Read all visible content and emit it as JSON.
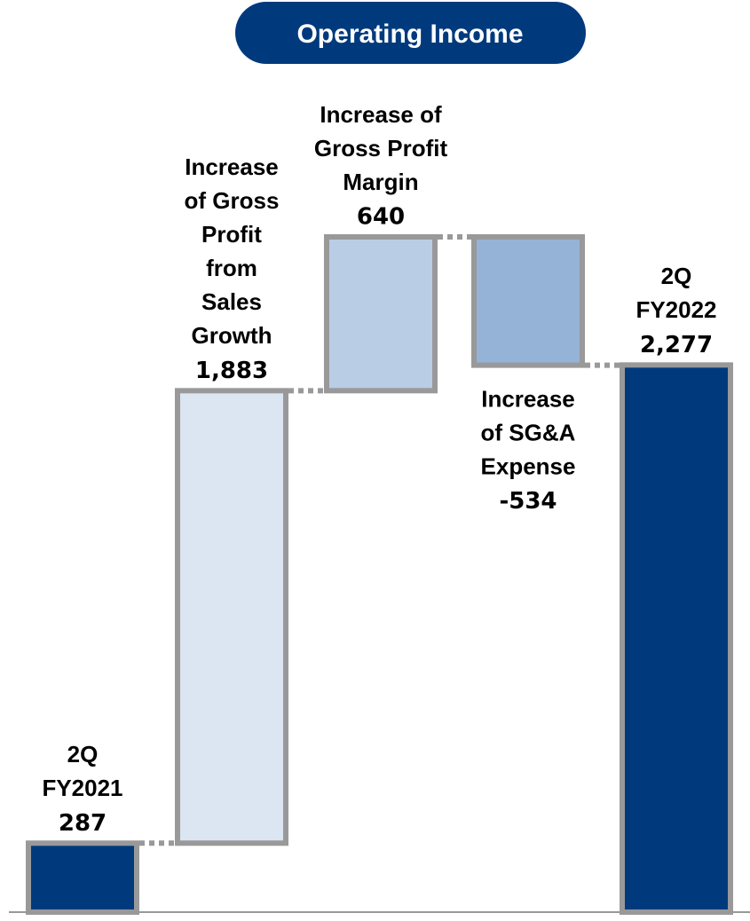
{
  "chart_data": {
    "type": "waterfall",
    "title": "Operating Income",
    "categories": [
      [
        "2Q",
        "FY2021"
      ],
      [
        "Increase",
        "of Gross",
        "Profit",
        "from",
        "Sales",
        "Growth"
      ],
      [
        "Increase of",
        "Gross Profit",
        "Margin"
      ],
      [
        "Increase",
        "of SG&A",
        "Expense"
      ],
      [
        "2Q",
        "FY2022"
      ]
    ],
    "values": [
      287,
      1883,
      640,
      -534,
      2277
    ],
    "value_labels": [
      "287",
      "1,883",
      "640",
      "-534",
      "2,277"
    ],
    "measures": [
      "total",
      "relative",
      "relative",
      "relative",
      "total"
    ],
    "colors": [
      "#003a7d",
      "#dce6f2",
      "#b9cde5",
      "#95b3d7",
      "#003a7d"
    ]
  }
}
